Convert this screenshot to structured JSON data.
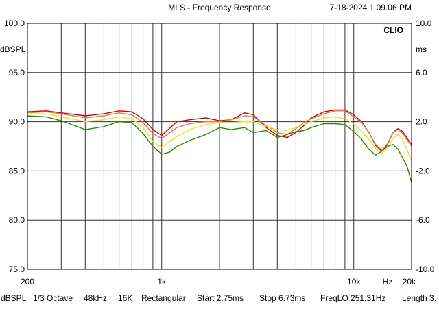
{
  "header": {
    "title": "MLS - Frequency Response",
    "timestamp": "7-18-2024 1.09.06 PM"
  },
  "chart_data": {
    "type": "line",
    "title": "MLS - Frequency Response",
    "brand_label": "CLIO",
    "x_scale": "log",
    "xlim": [
      200,
      20000
    ],
    "ylim": [
      75,
      100
    ],
    "y2lim": [
      -10,
      10
    ],
    "ylabel": "dBSPL",
    "y2label": "ms",
    "grid": true,
    "x_ticks": [
      {
        "value": 200,
        "label": "200"
      },
      {
        "value": 1000,
        "label": "1k"
      },
      {
        "value": 10000,
        "label": "10k"
      },
      {
        "value": 15000,
        "label": "Hz"
      },
      {
        "value": 20000,
        "label": "20k"
      }
    ],
    "y_ticks": [
      "100.0",
      "95.0",
      "90.0",
      "85.0",
      "80.0",
      "75.0"
    ],
    "y2_ticks": [
      "10.0",
      "6.0",
      "2.0",
      "-2.0",
      "-6.0",
      "-10.0"
    ],
    "series": [
      {
        "color": "#cc0000",
        "x": [
          200,
          250,
          300,
          400,
          500,
          600,
          700,
          800,
          900,
          1000,
          1200,
          1400,
          1700,
          2000,
          2300,
          2700,
          3000,
          3500,
          4000,
          4500,
          5000,
          5500,
          6000,
          7000,
          8000,
          9000,
          10000,
          11000,
          12000,
          13000,
          14000,
          15000,
          16000,
          17000,
          18000,
          19000,
          20000
        ],
        "y": [
          91.0,
          91.1,
          90.9,
          90.6,
          90.8,
          91.1,
          91.0,
          90.3,
          89.2,
          88.6,
          90.0,
          90.2,
          90.4,
          90.1,
          90.2,
          90.9,
          90.7,
          89.4,
          88.6,
          88.4,
          88.9,
          89.6,
          90.4,
          91.0,
          91.2,
          91.2,
          90.7,
          90.0,
          88.9,
          87.6,
          87.0,
          87.7,
          88.9,
          89.3,
          89.0,
          88.3,
          87.7
        ]
      },
      {
        "color": "#d08060",
        "x": [
          200,
          250,
          300,
          400,
          500,
          600,
          700,
          800,
          900,
          1000,
          1200,
          1400,
          1700,
          2000,
          2300,
          2700,
          3000,
          3500,
          4000,
          4500,
          5000,
          5500,
          6000,
          7000,
          8000,
          9000,
          10000,
          11000,
          12000,
          13000,
          14000,
          15000,
          16000,
          17000,
          18000,
          19000,
          20000
        ],
        "y": [
          90.9,
          91.0,
          90.8,
          90.4,
          90.6,
          90.9,
          90.7,
          89.9,
          88.8,
          88.3,
          89.4,
          89.8,
          90.0,
          90.0,
          90.2,
          90.6,
          90.5,
          89.6,
          88.9,
          88.7,
          89.3,
          89.9,
          90.3,
          90.8,
          91.1,
          91.1,
          90.5,
          89.9,
          88.9,
          87.7,
          87.1,
          87.8,
          88.9,
          89.2,
          88.8,
          88.1,
          87.5
        ]
      },
      {
        "color": "#f0e020",
        "x": [
          200,
          250,
          300,
          400,
          500,
          600,
          700,
          800,
          900,
          1000,
          1200,
          1400,
          1700,
          2000,
          2300,
          2700,
          3000,
          3500,
          4000,
          4500,
          5000,
          5500,
          6000,
          7000,
          8000,
          9000,
          10000,
          11000,
          12000,
          13000,
          14000,
          15000,
          16000,
          17000,
          18000,
          19000,
          20000
        ],
        "y": [
          90.8,
          90.8,
          90.5,
          90.0,
          90.2,
          90.5,
          90.3,
          89.4,
          88.0,
          87.4,
          88.5,
          89.2,
          89.7,
          89.9,
          89.9,
          90.0,
          90.0,
          89.5,
          89.2,
          89.1,
          89.4,
          89.7,
          90.0,
          90.4,
          90.5,
          90.3,
          89.8,
          89.0,
          88.2,
          87.3,
          86.8,
          87.3,
          88.3,
          88.7,
          88.2,
          87.1,
          86.0
        ]
      },
      {
        "color": "#2a8a00",
        "x": [
          200,
          250,
          300,
          400,
          500,
          600,
          700,
          800,
          900,
          1000,
          1100,
          1200,
          1400,
          1700,
          2000,
          2300,
          2700,
          3000,
          3500,
          4000,
          4500,
          5000,
          5500,
          6000,
          7000,
          8000,
          9000,
          10000,
          11000,
          12000,
          13000,
          14000,
          15000,
          16000,
          17000,
          18000,
          19000,
          20000
        ],
        "y": [
          90.6,
          90.5,
          90.1,
          89.2,
          89.5,
          90.0,
          89.9,
          88.8,
          87.5,
          86.7,
          86.9,
          87.5,
          88.1,
          88.7,
          89.4,
          89.2,
          89.4,
          88.9,
          89.1,
          88.4,
          88.7,
          89.0,
          89.1,
          89.4,
          89.8,
          89.8,
          89.7,
          89.0,
          88.2,
          87.2,
          86.6,
          87.0,
          87.5,
          87.7,
          87.2,
          86.3,
          85.4,
          83.8
        ]
      }
    ]
  },
  "footer": {
    "items": [
      "dBSPL",
      "1/3 Octave",
      "48kHz",
      "16K",
      "Rectangular",
      "Start 2.75ms",
      "Stop 6.73ms",
      "FreqLO 251.31Hz",
      "Length 3."
    ]
  }
}
